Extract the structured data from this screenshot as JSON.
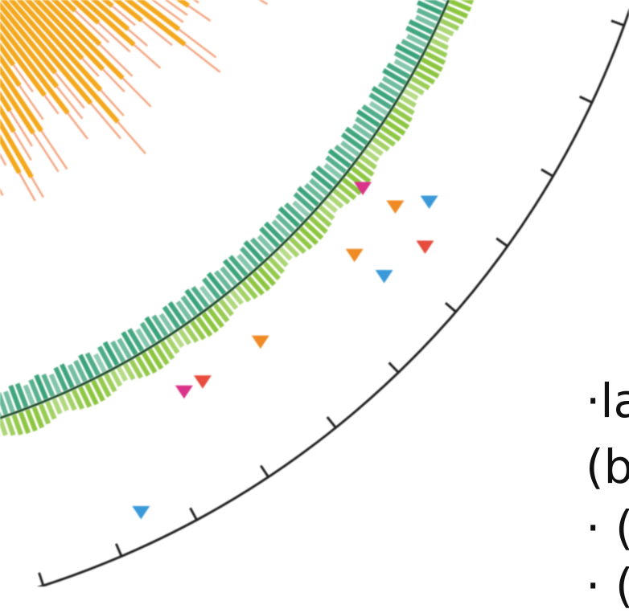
{
  "caption_lines": [
    "·la",
    "(b",
    "· (",
    "· ("
  ],
  "colors": {
    "histogram": "#f4a81e",
    "histogram_tips": "#ef8a5a",
    "ring_inner": "#3aa37a",
    "ring_outer": "#8cc63f",
    "ring_line": "#1f4d2c",
    "axis": "#222222",
    "marker_orange": "#f08a24",
    "marker_red": "#e84c3d",
    "marker_blue": "#3a9ad9",
    "marker_magenta": "#d9338a"
  },
  "markers": [
    {
      "data-name": "marker-magenta",
      "color": "marker_magenta"
    },
    {
      "data-name": "marker-red",
      "color": "marker_red"
    },
    {
      "data-name": "marker-orange",
      "color": "marker_orange"
    },
    {
      "data-name": "marker-orange",
      "color": "marker_orange"
    },
    {
      "data-name": "marker-orange",
      "color": "marker_orange"
    },
    {
      "data-name": "marker-blue",
      "color": "marker_blue"
    },
    {
      "data-name": "marker-red",
      "color": "marker_red"
    },
    {
      "data-name": "marker-blue",
      "color": "marker_blue"
    },
    {
      "data-name": "marker-blue",
      "color": "marker_blue"
    },
    {
      "data-name": "marker-magenta",
      "color": "marker_magenta"
    }
  ]
}
